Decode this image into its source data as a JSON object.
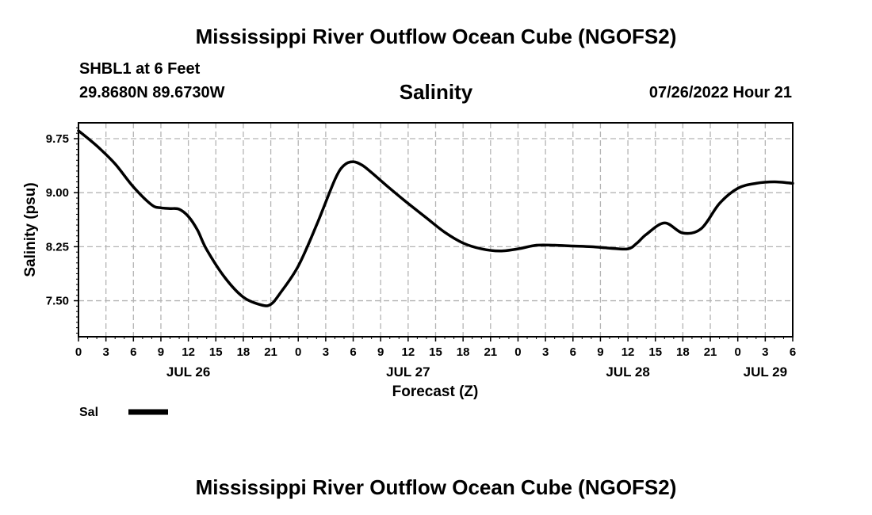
{
  "page": {
    "title_top": "Mississippi River Outflow Ocean Cube (NGOFS2)",
    "title_bottom": "Mississippi River Outflow Ocean Cube (NGOFS2)",
    "station": "SHBL1 at 6 Feet",
    "coords": "29.8680N  89.6730W",
    "variable": "Salinity",
    "datetime": "07/26/2022 Hour 21"
  },
  "chart_data": {
    "type": "line",
    "title": "Salinity",
    "xlabel": "Forecast (Z)",
    "ylabel": "Salinity (psu)",
    "xlim": [
      0,
      78
    ],
    "ylim": [
      7.0,
      9.97
    ],
    "y_ticks": [
      7.5,
      8.25,
      9.0,
      9.75
    ],
    "y_tick_labels": [
      "7.50",
      "8.25",
      "9.00",
      "9.75"
    ],
    "x_ticks": [
      0,
      3,
      6,
      9,
      12,
      15,
      18,
      21,
      24,
      27,
      30,
      33,
      36,
      39,
      42,
      45,
      48,
      51,
      54,
      57,
      60,
      63,
      66,
      69,
      72,
      75,
      78
    ],
    "x_tick_labels": [
      "0",
      "3",
      "6",
      "9",
      "12",
      "15",
      "18",
      "21",
      "0",
      "3",
      "6",
      "9",
      "12",
      "15",
      "18",
      "21",
      "0",
      "3",
      "6",
      "9",
      "12",
      "15",
      "18",
      "21",
      "0",
      "3",
      "6"
    ],
    "day_labels": [
      {
        "x": 12,
        "label": "JUL 26"
      },
      {
        "x": 36,
        "label": "JUL 27"
      },
      {
        "x": 60,
        "label": "JUL 28"
      },
      {
        "x": 75,
        "label": "JUL 29"
      }
    ],
    "grid": true,
    "legend": [
      {
        "label": "Sal",
        "color": "#000000"
      }
    ],
    "series": [
      {
        "name": "Sal",
        "color": "#000000",
        "x": [
          0,
          2,
          4,
          6,
          8,
          9,
          10,
          11,
          12,
          13,
          14,
          16,
          18,
          20,
          21,
          22,
          24,
          26,
          28,
          29,
          30,
          31,
          32,
          34,
          36,
          38,
          40,
          42,
          44,
          46,
          48,
          50,
          52,
          54,
          56,
          58,
          60,
          61,
          62,
          64,
          66,
          68,
          70,
          72,
          74,
          76,
          78
        ],
        "values": [
          9.86,
          9.65,
          9.4,
          9.08,
          8.83,
          8.79,
          8.78,
          8.77,
          8.67,
          8.48,
          8.21,
          7.82,
          7.55,
          7.44,
          7.45,
          7.6,
          7.98,
          8.55,
          9.18,
          9.38,
          9.43,
          9.38,
          9.28,
          9.06,
          8.85,
          8.65,
          8.45,
          8.3,
          8.22,
          8.19,
          8.22,
          8.27,
          8.27,
          8.26,
          8.25,
          8.23,
          8.22,
          8.3,
          8.42,
          8.58,
          8.44,
          8.5,
          8.85,
          9.06,
          9.13,
          9.15,
          9.13
        ]
      }
    ]
  }
}
